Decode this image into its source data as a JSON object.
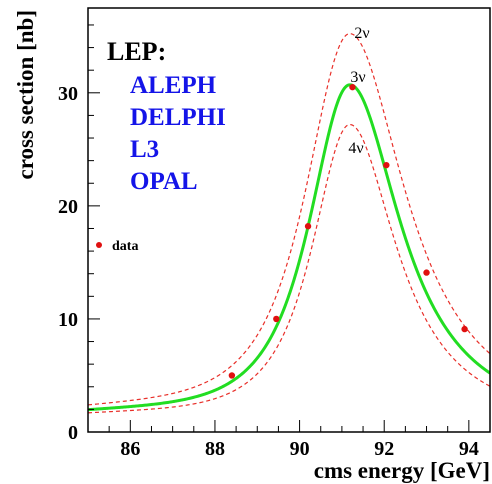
{
  "chart_data": {
    "type": "line",
    "title": "",
    "xlabel": "cms energy [GeV]",
    "ylabel": "cross section [nb]",
    "xlim": [
      85,
      94.5
    ],
    "ylim": [
      0,
      37.5
    ],
    "xticks": [
      86,
      88,
      90,
      92,
      94
    ],
    "yticks": [
      0,
      10,
      20,
      30
    ],
    "xtick_labels": [
      "86",
      "88",
      "90",
      "92",
      "94"
    ],
    "ytick_labels": [
      "0",
      "10",
      "20",
      "30"
    ],
    "experiment_header": "LEP:",
    "experiments": [
      "ALEPH",
      "DELPHI",
      "L3",
      "OPAL"
    ],
    "legend": {
      "label": "data",
      "placement": "left"
    },
    "series": [
      {
        "name": "2ν",
        "style": "dashed",
        "color": "#e8302a",
        "peak_x": 91.19,
        "peak_y": 35.0,
        "width": 2.8,
        "low_tail": 1.4
      },
      {
        "name": "3ν",
        "style": "solid",
        "color": "#22dd22",
        "peak_x": 91.19,
        "peak_y": 30.5,
        "width": 2.55,
        "low_tail": 1.25
      },
      {
        "name": "4ν",
        "style": "dashed",
        "color": "#e8302a",
        "peak_x": 91.19,
        "peak_y": 27.0,
        "width": 2.35,
        "low_tail": 1.15
      }
    ],
    "data_points": {
      "name": "data",
      "color": "#e01010",
      "x": [
        88.4,
        89.45,
        90.2,
        91.25,
        92.05,
        93.0,
        93.9
      ],
      "y": [
        5.0,
        10.0,
        18.2,
        30.5,
        23.6,
        14.1,
        9.1
      ]
    }
  }
}
